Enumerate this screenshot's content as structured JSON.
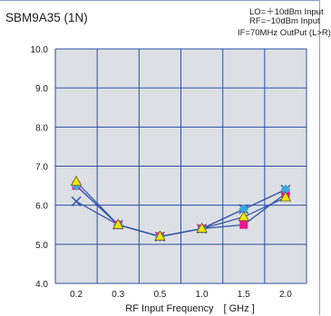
{
  "header": {
    "title": "SBM9A35 (1N)",
    "conditions": [
      "LO=＋10dBm Input",
      "RF=−10dBm Input",
      "IF=70MHz OutPut (L>R)"
    ]
  },
  "chart_data": {
    "type": "line",
    "title": "SBM9A35 (1N)",
    "xlabel": "RF Input Frequency　[ GHz ]",
    "ylabel": "",
    "categories": [
      "0.2",
      "0.3",
      "0.5",
      "1.0",
      "1.5",
      "2.0"
    ],
    "yticks": [
      "4.0",
      "5.0",
      "6.0",
      "7.0",
      "8.0",
      "9.0",
      "10.0"
    ],
    "ylim": [
      4.0,
      10.0
    ],
    "grid": true,
    "series": [
      {
        "marker": "x",
        "color": "#2b4fa8",
        "values": [
          6.1,
          5.5,
          5.2,
          5.4,
          5.9,
          6.4
        ]
      },
      {
        "marker": "square",
        "color": "#e8198c",
        "values": [
          6.5,
          5.5,
          5.2,
          5.4,
          5.5,
          6.3
        ]
      },
      {
        "marker": "diamond",
        "color": "#3aa8e0",
        "values": [
          6.5,
          5.5,
          5.2,
          5.4,
          5.9,
          6.4
        ]
      },
      {
        "marker": "triangle",
        "color": "#f2e600",
        "values": [
          6.6,
          5.5,
          5.2,
          5.4,
          5.7,
          6.2
        ]
      }
    ],
    "colors": {
      "plot_bg": "#dcdfe3",
      "grid": "#2b4fa8",
      "line": "#2b4fa8"
    }
  }
}
